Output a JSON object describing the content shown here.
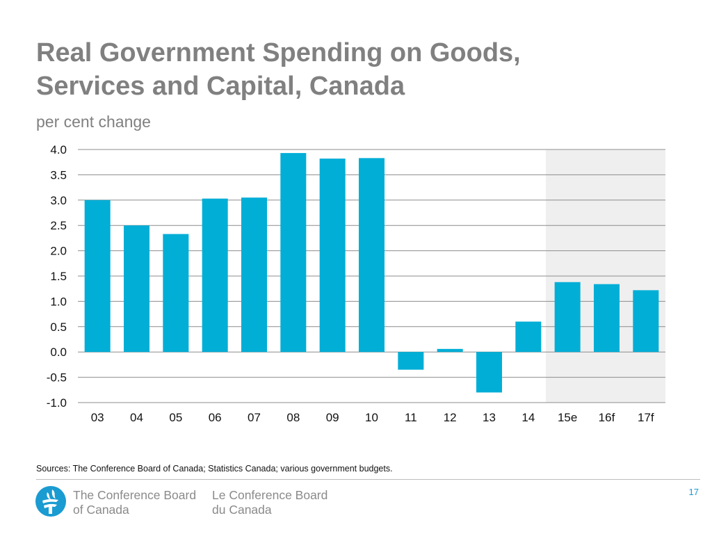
{
  "slide": {
    "title_line1": "Real Government Spending on Goods,",
    "title_line2": "Services and Capital, Canada",
    "subtitle": "per cent change",
    "sources": "Sources: The Conference Board of Canada; Statistics Canada; various government budgets.",
    "page_number": "17"
  },
  "footer": {
    "org_en_line1": "The Conference Board",
    "org_en_line2": "of Canada",
    "org_fr_line1": "Le Conference Board",
    "org_fr_line2": "du Canada"
  },
  "colors": {
    "bar": "#00aed6",
    "forecast_shade": "#efefef",
    "grid": "#8c8c8c",
    "title": "#808080",
    "accent": "#1a9bd1"
  },
  "chart_data": {
    "type": "bar",
    "title": "Real Government Spending on Goods, Services and Capital, Canada",
    "ylabel": "per cent change",
    "xlabel": "",
    "categories": [
      "03",
      "04",
      "05",
      "06",
      "07",
      "08",
      "09",
      "10",
      "11",
      "12",
      "13",
      "14",
      "15e",
      "16f",
      "17f"
    ],
    "values": [
      3.0,
      2.5,
      2.33,
      3.03,
      3.05,
      3.93,
      3.82,
      3.83,
      -0.35,
      0.06,
      -0.8,
      0.6,
      1.38,
      1.34,
      1.22
    ],
    "ylim": [
      -1.0,
      4.0
    ],
    "yticks": [
      "4.0",
      "3.5",
      "3.0",
      "2.5",
      "2.0",
      "1.5",
      "1.0",
      "0.5",
      "0.0",
      "-0.5",
      "-1.0"
    ],
    "forecast_shaded_from": "15e",
    "grid": true,
    "legend": "none"
  }
}
